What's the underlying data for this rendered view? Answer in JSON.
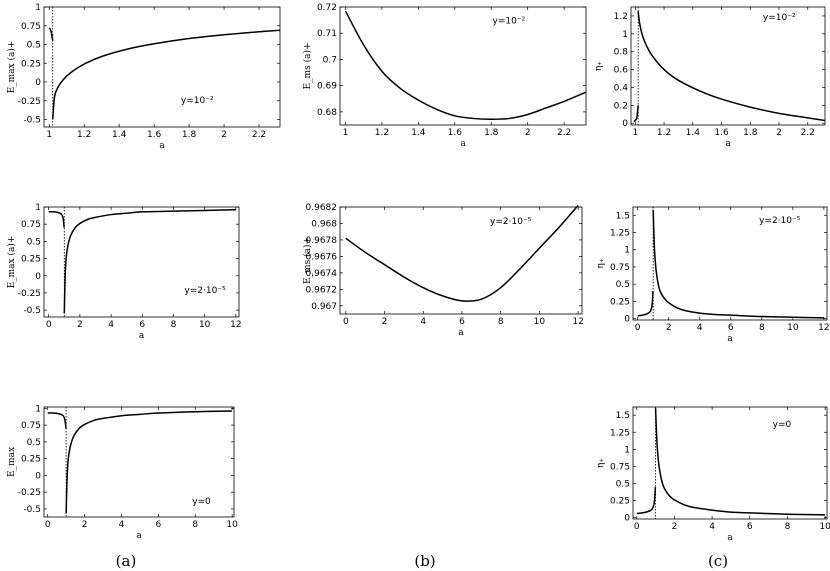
{
  "chart_data": [
    {
      "id": "a1",
      "type": "line",
      "xlabel": "a",
      "ylabel": "E_max (a)+",
      "annotation": "y=10⁻²",
      "xlim": [
        0.97,
        2.32
      ],
      "ylim": [
        -0.6,
        1.0
      ],
      "xticks": [
        1,
        1.2,
        1.4,
        1.6,
        1.8,
        2,
        2.2
      ],
      "xticklabels": [
        "1",
        "1.2",
        "1.4",
        "1.6",
        "1.8",
        "2",
        "2.2"
      ],
      "yticks": [
        -0.5,
        -0.25,
        0,
        0.25,
        0.5,
        0.75,
        1
      ],
      "yticklabels": [
        "-0.5",
        "-0.25",
        "0",
        "0.25",
        "0.5",
        "0.75",
        "1"
      ],
      "singularity": 1.02,
      "series": [
        {
          "x": [
            1.0,
            1.005,
            1.01,
            1.015,
            1.02
          ],
          "y": [
            0.72,
            0.71,
            0.68,
            0.62,
            0.55
          ]
        },
        {
          "x": [
            1.02,
            1.03,
            1.05,
            1.08,
            1.12,
            1.2,
            1.3,
            1.45,
            1.6,
            1.8,
            2.0,
            2.2,
            2.32
          ],
          "y": [
            -0.5,
            -0.2,
            -0.07,
            0.03,
            0.12,
            0.24,
            0.34,
            0.44,
            0.51,
            0.58,
            0.63,
            0.67,
            0.69
          ]
        }
      ]
    },
    {
      "id": "b1",
      "type": "line",
      "xlabel": "a",
      "ylabel": "E_ms (a)+",
      "annotation": "y=10⁻²",
      "xlim": [
        0.97,
        2.32
      ],
      "ylim": [
        0.675,
        0.72
      ],
      "xticks": [
        1,
        1.2,
        1.4,
        1.6,
        1.8,
        2,
        2.2
      ],
      "xticklabels": [
        "1",
        "1.2",
        "1.4",
        "1.6",
        "1.8",
        "2",
        "2.2"
      ],
      "yticks": [
        0.68,
        0.69,
        0.7,
        0.71,
        0.72
      ],
      "yticklabels": [
        "0.68",
        "0.69",
        "0.7",
        "0.71",
        "0.72"
      ],
      "series": [
        {
          "x": [
            1.0,
            1.1,
            1.2,
            1.3,
            1.4,
            1.5,
            1.6,
            1.7,
            1.8,
            1.9,
            2.0,
            2.1,
            2.2,
            2.32
          ],
          "y": [
            0.7185,
            0.7055,
            0.6955,
            0.689,
            0.6845,
            0.681,
            0.6785,
            0.6775,
            0.6772,
            0.6775,
            0.679,
            0.6815,
            0.684,
            0.6875
          ]
        }
      ]
    },
    {
      "id": "c1",
      "type": "line",
      "xlabel": "a",
      "ylabel": "η₊",
      "annotation": "y=10⁻²",
      "xlim": [
        0.97,
        2.32
      ],
      "ylim": [
        -0.02,
        1.3
      ],
      "xticks": [
        1,
        1.2,
        1.4,
        1.6,
        1.8,
        2,
        2.2
      ],
      "xticklabels": [
        "1",
        "1.2",
        "1.4",
        "1.6",
        "1.8",
        "2",
        "2.2"
      ],
      "yticks": [
        0,
        0.2,
        0.4,
        0.6,
        0.8,
        1,
        1.2
      ],
      "yticklabels": [
        "0",
        "0.2",
        "0.4",
        "0.6",
        "0.8",
        "1",
        "1.2"
      ],
      "singularity": 1.02,
      "series": [
        {
          "x": [
            0.99,
            1.0,
            1.01,
            1.015,
            1.02
          ],
          "y": [
            0.02,
            0.03,
            0.06,
            0.12,
            0.2
          ]
        },
        {
          "x": [
            1.02,
            1.03,
            1.05,
            1.08,
            1.12,
            1.2,
            1.3,
            1.45,
            1.6,
            1.8,
            2.0,
            2.2,
            2.32
          ],
          "y": [
            1.25,
            1.12,
            0.98,
            0.86,
            0.75,
            0.6,
            0.48,
            0.36,
            0.27,
            0.18,
            0.11,
            0.06,
            0.03
          ]
        }
      ]
    },
    {
      "id": "a2",
      "type": "line",
      "xlabel": "a",
      "ylabel": "E_max (a)+",
      "annotation": "y=2·10⁻⁵",
      "xlim": [
        -0.3,
        12.2
      ],
      "ylim": [
        -0.6,
        1.0
      ],
      "xticks": [
        0,
        2,
        4,
        6,
        8,
        10,
        12
      ],
      "xticklabels": [
        "0",
        "2",
        "4",
        "6",
        "8",
        "10",
        "12"
      ],
      "yticks": [
        -0.5,
        -0.25,
        0,
        0.25,
        0.5,
        0.75,
        1
      ],
      "yticklabels": [
        "-0.5",
        "-0.25",
        "0",
        "0.25",
        "0.5",
        "0.75",
        "1"
      ],
      "singularity": 1.0,
      "series": [
        {
          "x": [
            0.0,
            0.3,
            0.6,
            0.8,
            0.9,
            0.95,
            0.99
          ],
          "y": [
            0.93,
            0.93,
            0.92,
            0.9,
            0.86,
            0.8,
            0.7
          ]
        },
        {
          "x": [
            1.0,
            1.05,
            1.1,
            1.2,
            1.4,
            1.7,
            2.0,
            2.5,
            3.0,
            4.0,
            5.0,
            6.0,
            8.0,
            10.0,
            12.0
          ],
          "y": [
            -0.55,
            -0.05,
            0.2,
            0.4,
            0.58,
            0.7,
            0.76,
            0.82,
            0.85,
            0.89,
            0.91,
            0.93,
            0.94,
            0.95,
            0.96
          ]
        }
      ]
    },
    {
      "id": "b2",
      "type": "line",
      "xlabel": "a",
      "ylabel": "E_ms (a)+",
      "annotation": "y=2·10⁻⁵",
      "xlim": [
        -0.3,
        12.2
      ],
      "ylim": [
        0.9669,
        0.9682
      ],
      "xticks": [
        0,
        2,
        4,
        6,
        8,
        10,
        12
      ],
      "xticklabels": [
        "0",
        "2",
        "4",
        "6",
        "8",
        "10",
        "12"
      ],
      "yticks": [
        0.967,
        0.9672,
        0.9674,
        0.9676,
        0.9678,
        0.968,
        0.9682
      ],
      "yticklabels": [
        "0.967",
        "0.9672",
        "0.9674",
        "0.9676",
        "0.9678",
        "0.968",
        "0.9682"
      ],
      "series": [
        {
          "x": [
            0,
            1,
            2,
            3,
            4,
            5,
            6,
            7,
            8,
            9,
            10,
            11,
            12
          ],
          "y": [
            0.96782,
            0.96765,
            0.9675,
            0.96735,
            0.96722,
            0.96712,
            0.96706,
            0.96708,
            0.96722,
            0.96745,
            0.9677,
            0.96795,
            0.96822
          ]
        }
      ]
    },
    {
      "id": "c2",
      "type": "line",
      "xlabel": "a",
      "ylabel": "η₊",
      "annotation": "y=2·10⁻⁵",
      "xlim": [
        -0.3,
        12.2
      ],
      "ylim": [
        -0.02,
        1.62
      ],
      "xticks": [
        0,
        2,
        4,
        6,
        8,
        10,
        12
      ],
      "xticklabels": [
        "0",
        "2",
        "4",
        "6",
        "8",
        "10",
        "12"
      ],
      "yticks": [
        0,
        0.25,
        0.5,
        0.75,
        1,
        1.25,
        1.5
      ],
      "yticklabels": [
        "0",
        "0.25",
        "0.5",
        "0.75",
        "1",
        "1.25",
        "1.5"
      ],
      "singularity": 1.0,
      "series": [
        {
          "x": [
            0.0,
            0.3,
            0.6,
            0.8,
            0.9,
            0.95,
            0.99
          ],
          "y": [
            0.04,
            0.05,
            0.07,
            0.1,
            0.16,
            0.25,
            0.4
          ]
        },
        {
          "x": [
            1.0,
            1.05,
            1.1,
            1.2,
            1.4,
            1.7,
            2.0,
            2.5,
            3.0,
            4.0,
            5.0,
            6.0,
            8.0,
            10.0,
            12.0
          ],
          "y": [
            1.58,
            1.2,
            0.95,
            0.68,
            0.43,
            0.3,
            0.23,
            0.16,
            0.12,
            0.08,
            0.06,
            0.05,
            0.03,
            0.02,
            0.01
          ]
        }
      ]
    },
    {
      "id": "a3",
      "type": "line",
      "xlabel": "a",
      "ylabel": "E_max",
      "annotation": "y=0",
      "xlim": [
        -0.2,
        10.1
      ],
      "ylim": [
        -0.62,
        1.02
      ],
      "xticks": [
        0,
        2,
        4,
        6,
        8,
        10
      ],
      "xticklabels": [
        "0",
        "2",
        "4",
        "6",
        "8",
        "10"
      ],
      "yticks": [
        -0.5,
        -0.25,
        0,
        0.25,
        0.5,
        0.75,
        1
      ],
      "yticklabels": [
        "-0.5",
        "-0.25",
        "0",
        "0.25",
        "0.5",
        "0.75",
        "1"
      ],
      "singularity": 1.0,
      "series": [
        {
          "x": [
            0.0,
            0.3,
            0.6,
            0.8,
            0.9,
            0.95,
            0.99
          ],
          "y": [
            0.93,
            0.93,
            0.92,
            0.9,
            0.86,
            0.8,
            0.7
          ]
        },
        {
          "x": [
            1.0,
            1.05,
            1.1,
            1.2,
            1.4,
            1.7,
            2.0,
            2.5,
            3.0,
            4.0,
            5.0,
            6.0,
            8.0,
            10.0
          ],
          "y": [
            -0.57,
            -0.05,
            0.2,
            0.4,
            0.58,
            0.7,
            0.76,
            0.82,
            0.85,
            0.89,
            0.91,
            0.93,
            0.95,
            0.96
          ]
        }
      ]
    },
    {
      "id": "c3",
      "type": "line",
      "xlabel": "a",
      "ylabel": "η₊",
      "annotation": "y=0",
      "xlim": [
        -0.2,
        10.1
      ],
      "ylim": [
        -0.02,
        1.62
      ],
      "xticks": [
        0,
        2,
        4,
        6,
        8,
        10
      ],
      "xticklabels": [
        "0",
        "2",
        "4",
        "6",
        "8",
        "10"
      ],
      "yticks": [
        0,
        0.25,
        0.5,
        0.75,
        1,
        1.25,
        1.5
      ],
      "yticklabels": [
        "0",
        "0.25",
        "0.5",
        "0.75",
        "1",
        "1.25",
        "1.5"
      ],
      "singularity": 1.0,
      "series": [
        {
          "x": [
            0.0,
            0.3,
            0.6,
            0.8,
            0.9,
            0.95,
            0.99
          ],
          "y": [
            0.06,
            0.07,
            0.09,
            0.12,
            0.18,
            0.28,
            0.45
          ]
        },
        {
          "x": [
            1.0,
            1.05,
            1.1,
            1.2,
            1.4,
            1.7,
            2.0,
            2.5,
            3.0,
            4.0,
            5.0,
            6.0,
            8.0,
            10.0
          ],
          "y": [
            1.6,
            1.22,
            0.98,
            0.72,
            0.47,
            0.33,
            0.26,
            0.19,
            0.15,
            0.11,
            0.08,
            0.07,
            0.05,
            0.04
          ]
        }
      ]
    }
  ],
  "captions": [
    "(a)",
    "(b)",
    "(c)"
  ]
}
